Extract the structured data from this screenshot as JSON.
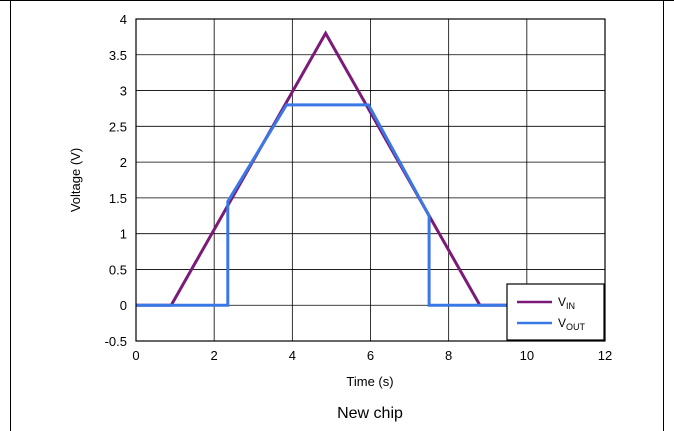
{
  "caption": "New chip",
  "chart_data": {
    "type": "line",
    "xlabel": "Time (s)",
    "ylabel": "Voltage (V)",
    "xlim": [
      0,
      12
    ],
    "ylim": [
      -0.5,
      4
    ],
    "xticks": [
      "0",
      "2",
      "4",
      "6",
      "8",
      "10",
      "12"
    ],
    "yticks": [
      "-0.5",
      "0",
      "0.5",
      "1",
      "1.5",
      "2",
      "2.5",
      "3",
      "3.5",
      "4"
    ],
    "grid": true,
    "legend_position": "bottom-right",
    "series": [
      {
        "name": "V",
        "name_subscript": "IN",
        "color": "#7b1a78",
        "x": [
          0,
          0.9,
          4.85,
          8.8,
          9.5
        ],
        "y": [
          0,
          0,
          3.8,
          0,
          0
        ]
      },
      {
        "name": "V",
        "name_subscript": "OUT",
        "color": "#3a78e6",
        "x": [
          0,
          2.35,
          2.35,
          3.85,
          5.95,
          7.5,
          7.5,
          9.5
        ],
        "y": [
          0,
          0,
          1.45,
          2.8,
          2.8,
          1.25,
          0,
          0
        ]
      }
    ]
  }
}
